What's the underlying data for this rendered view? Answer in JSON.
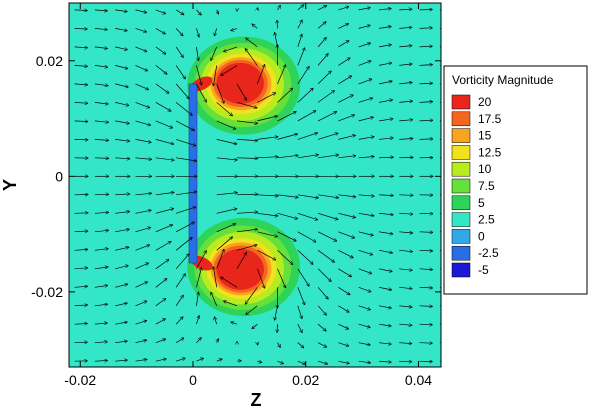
{
  "chart_data": {
    "type": "heatmap",
    "title": "",
    "xlabel": "Z",
    "ylabel": "Y",
    "xlim": [
      -0.022,
      0.044
    ],
    "ylim": [
      -0.033,
      0.03
    ],
    "x_ticks": [
      {
        "value": -0.02,
        "label": "-0.02"
      },
      {
        "value": 0,
        "label": "0"
      },
      {
        "value": 0.02,
        "label": "0.02"
      },
      {
        "value": 0.04,
        "label": "0.04"
      }
    ],
    "y_ticks": [
      {
        "value": 0.02,
        "label": "0.02"
      },
      {
        "value": 0,
        "label": "0"
      },
      {
        "value": -0.02,
        "label": "-0.02"
      }
    ],
    "background_level": 2.5,
    "plate": {
      "z": 0,
      "y_min": -0.015,
      "y_max": 0.016,
      "value": -2.5
    },
    "vortices": [
      {
        "name": "upper-vortex",
        "z": 0.009,
        "y": 0.0157,
        "peak": 20,
        "rz": 0.01,
        "ry": 0.0085
      },
      {
        "name": "lower-vortex",
        "z": 0.009,
        "y": -0.0157,
        "peak": 20,
        "rz": 0.01,
        "ry": 0.0085
      }
    ],
    "vector_field": "velocity arrows",
    "legend": {
      "title": "Vorticity Magnitude",
      "placement": "right",
      "levels": [
        {
          "label": "20",
          "value": 20,
          "color": "#e8261c"
        },
        {
          "label": "17.5",
          "value": 17.5,
          "color": "#f4661f"
        },
        {
          "label": "15",
          "value": 15,
          "color": "#f9a41f"
        },
        {
          "label": "12.5",
          "value": 12.5,
          "color": "#f0e21e"
        },
        {
          "label": "10",
          "value": 10,
          "color": "#b9ec1e"
        },
        {
          "label": "7.5",
          "value": 7.5,
          "color": "#66e03a"
        },
        {
          "label": "5",
          "value": 5,
          "color": "#2ed35a"
        },
        {
          "label": "2.5",
          "value": 2.5,
          "color": "#33e6c7"
        },
        {
          "label": "0",
          "value": 0,
          "color": "#33a8e8"
        },
        {
          "label": "-2.5",
          "value": -2.5,
          "color": "#2a6ee6"
        },
        {
          "label": "-5",
          "value": -5,
          "color": "#1a1ad6"
        }
      ]
    }
  }
}
